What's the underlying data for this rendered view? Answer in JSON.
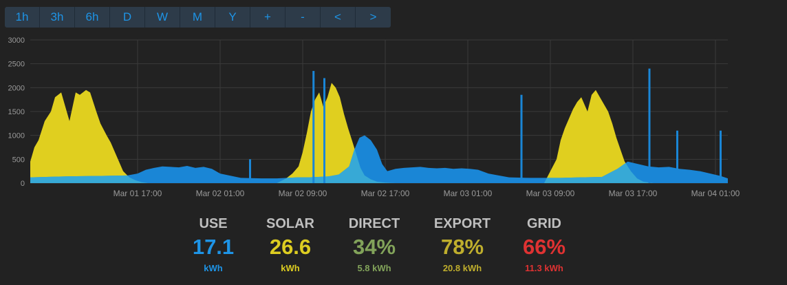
{
  "toolbar": {
    "buttons": [
      "1h",
      "3h",
      "6h",
      "D",
      "W",
      "M",
      "Y",
      "+",
      "-",
      "<",
      ">"
    ],
    "color": "#1e94e6",
    "background": "#2d3b49"
  },
  "chart_data": {
    "type": "area",
    "title": "",
    "xlabel": "",
    "ylabel": "",
    "ylim": [
      0,
      3000
    ],
    "yticks": [
      0,
      500,
      1000,
      1500,
      2000,
      2500,
      3000
    ],
    "x_range_hours": [
      -10.4,
      57.2
    ],
    "xtick_labels": [
      {
        "label": "Mar 01 17:00",
        "hours": 0
      },
      {
        "label": "Mar 02 01:00",
        "hours": 8
      },
      {
        "label": "Mar 02 09:00",
        "hours": 16
      },
      {
        "label": "Mar 02 17:00",
        "hours": 24
      },
      {
        "label": "Mar 03 01:00",
        "hours": 32
      },
      {
        "label": "Mar 03 09:00",
        "hours": 40
      },
      {
        "label": "Mar 03 17:00",
        "hours": 48
      },
      {
        "label": "Mar 04 01:00",
        "hours": 56
      }
    ],
    "grid": true,
    "colors": {
      "use": "#1a86d6",
      "solar": "#e0cf1f",
      "overlap": "#37a9d6",
      "grid": "#3b3b3b",
      "axis_text": "#9a9a9a"
    },
    "series": [
      {
        "id": "solar",
        "x": [
          -10.4,
          -10.0,
          -9.6,
          -9.0,
          -8.4,
          -8.0,
          -7.4,
          -7.0,
          -6.6,
          -6.0,
          -5.6,
          -5.0,
          -4.6,
          -4.0,
          -3.6,
          -3.0,
          -2.6,
          -2.0,
          -1.4,
          -0.8,
          -0.2,
          0.4,
          1.0,
          2.0,
          13.5,
          14.4,
          15.0,
          15.6,
          16.0,
          16.4,
          16.8,
          17.2,
          17.6,
          18.0,
          18.4,
          18.8,
          19.2,
          19.6,
          20.0,
          20.4,
          20.8,
          21.2,
          21.6,
          22.0,
          22.6,
          23.2,
          24.0,
          25.0,
          25.6,
          39.4,
          40.0,
          40.6,
          41.0,
          41.4,
          41.8,
          42.2,
          42.6,
          43.0,
          43.6,
          44.0,
          44.4,
          44.8,
          45.2,
          45.6,
          46.0,
          46.4,
          46.8,
          47.2,
          47.8,
          48.4,
          49.0,
          50.0
        ],
        "y": [
          450,
          750,
          900,
          1300,
          1500,
          1800,
          1900,
          1600,
          1300,
          1900,
          1850,
          1950,
          1900,
          1500,
          1250,
          1000,
          850,
          550,
          250,
          120,
          60,
          20,
          0,
          0,
          0,
          100,
          200,
          350,
          650,
          1050,
          1500,
          1750,
          1900,
          1600,
          1800,
          2100,
          2000,
          1800,
          1450,
          1150,
          880,
          600,
          320,
          160,
          80,
          30,
          10,
          0,
          0,
          0,
          250,
          500,
          900,
          1150,
          1350,
          1550,
          1700,
          1800,
          1500,
          1850,
          1950,
          1800,
          1650,
          1500,
          1250,
          950,
          700,
          450,
          250,
          100,
          30,
          0
        ]
      },
      {
        "id": "use",
        "x": [
          -10.4,
          -7.0,
          -4.0,
          -1.0,
          0.0,
          0.8,
          1.6,
          2.4,
          3.2,
          4.0,
          4.8,
          5.6,
          6.4,
          7.2,
          8.0,
          10.0,
          12.0,
          13.5,
          14.5,
          15.5,
          16.5,
          17.5,
          18.5,
          19.5,
          20.5,
          21.0,
          21.5,
          22.0,
          22.6,
          23.2,
          23.7,
          24.2,
          25.0,
          25.8,
          26.6,
          27.4,
          28.2,
          29.0,
          29.8,
          30.6,
          31.4,
          32.2,
          33.0,
          34.0,
          36.0,
          38.0,
          39.5,
          41.0,
          43.0,
          45.0,
          46.5,
          47.5,
          48.5,
          49.5,
          50.5,
          51.5,
          52.5,
          53.5,
          54.5,
          55.5,
          56.5,
          57.2
        ],
        "y": [
          120,
          140,
          150,
          160,
          200,
          280,
          320,
          350,
          340,
          330,
          360,
          320,
          340,
          300,
          200,
          110,
          100,
          100,
          110,
          120,
          120,
          130,
          140,
          180,
          350,
          700,
          950,
          1000,
          900,
          700,
          400,
          250,
          300,
          320,
          330,
          340,
          320,
          310,
          320,
          300,
          310,
          300,
          280,
          200,
          120,
          110,
          110,
          110,
          120,
          130,
          300,
          450,
          400,
          350,
          330,
          340,
          300,
          280,
          250,
          200,
          150,
          100
        ],
        "spikes": [
          {
            "hours": 17.05,
            "value": 2350
          },
          {
            "hours": 18.1,
            "value": 2200
          },
          {
            "hours": 49.6,
            "value": 2400
          },
          {
            "hours": 52.3,
            "value": 1100
          },
          {
            "hours": 37.2,
            "value": 1850
          },
          {
            "hours": 10.9,
            "value": 500
          },
          {
            "hours": 56.5,
            "value": 1100
          }
        ]
      }
    ]
  },
  "stats": [
    {
      "title": "USE",
      "value": "17.1",
      "sub": "kWh",
      "color": "#1e94e6"
    },
    {
      "title": "SOLAR",
      "value": "26.6",
      "sub": "kWh",
      "color": "#ddcd21"
    },
    {
      "title": "DIRECT",
      "value": "34%",
      "sub": "5.8 kWh",
      "color": "#82a35a"
    },
    {
      "title": "EXPORT",
      "value": "78%",
      "sub": "20.8 kWh",
      "color": "#bfae2d"
    },
    {
      "title": "GRID",
      "value": "66%",
      "sub": "11.3 kWh",
      "color": "#df3232"
    }
  ]
}
